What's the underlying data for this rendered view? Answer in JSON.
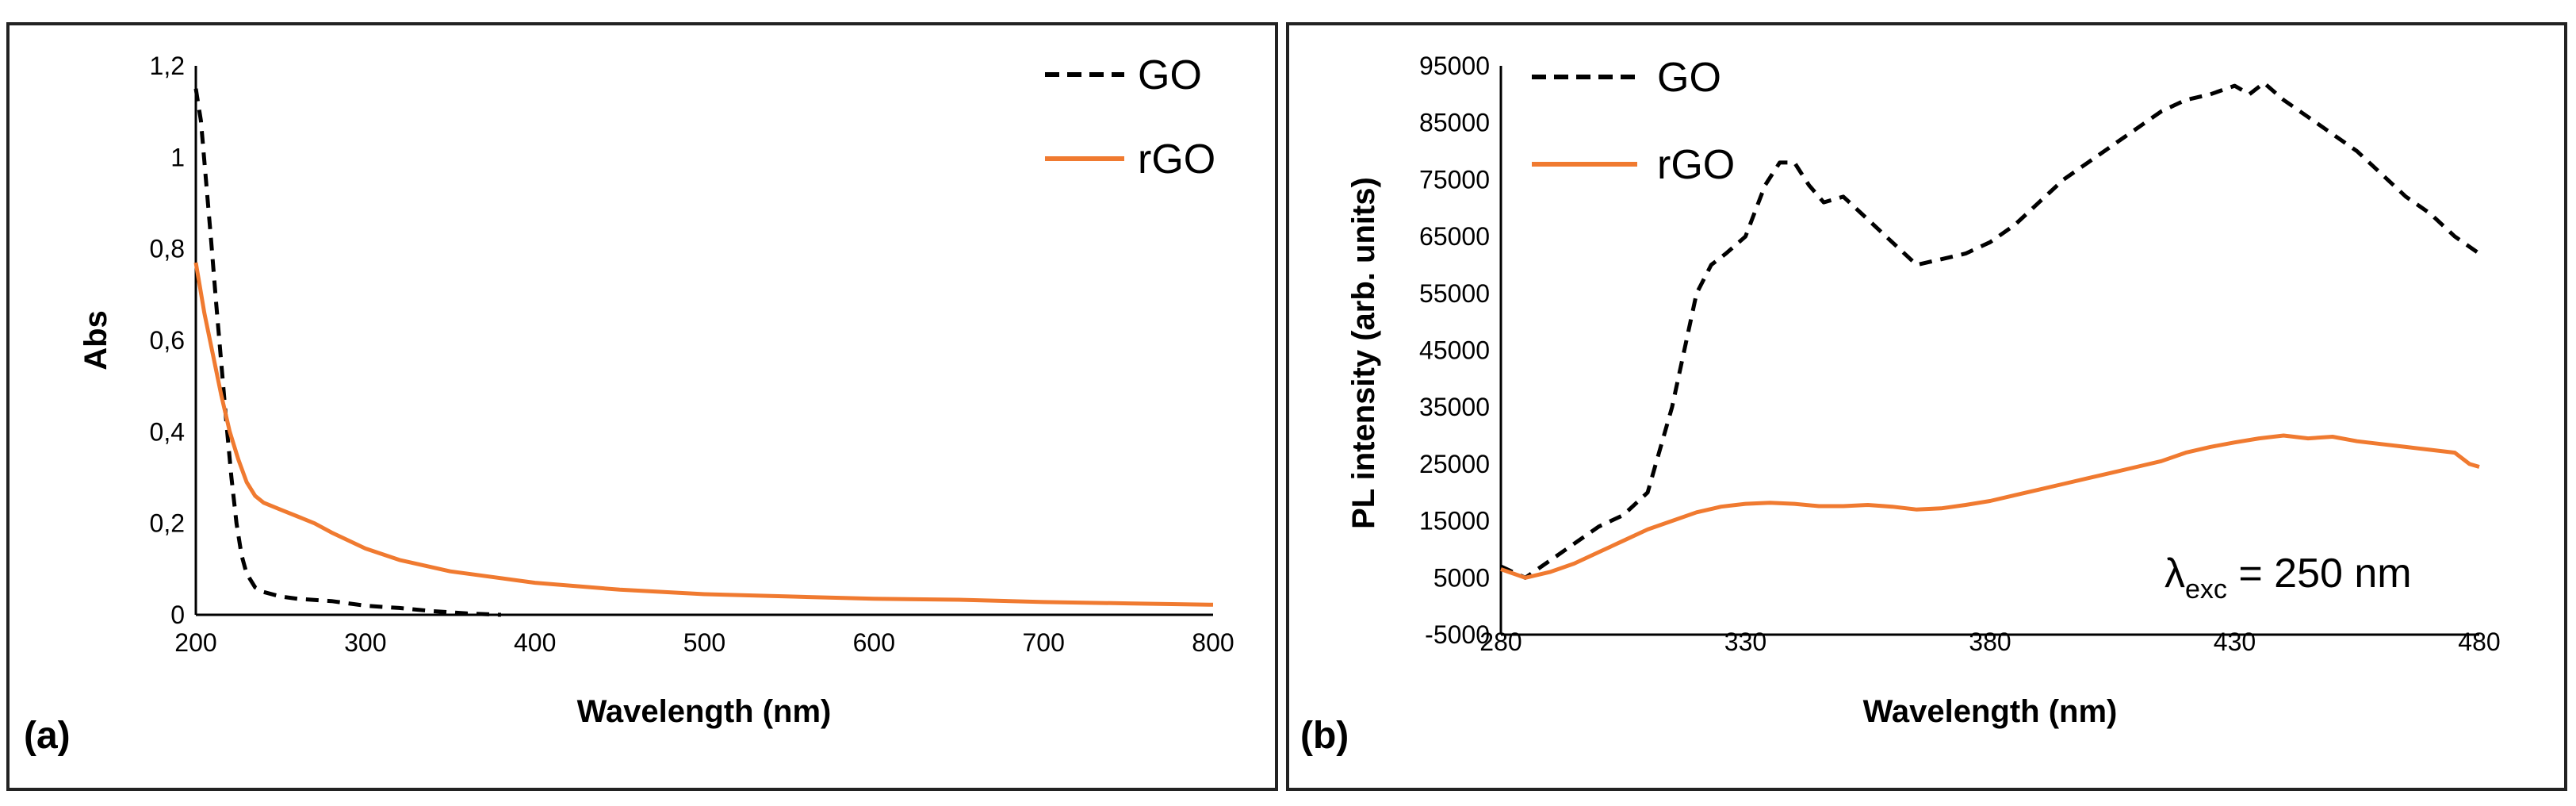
{
  "chart_data": [
    {
      "panel": "(a)",
      "type": "line",
      "xlabel": "Wavelength (nm)",
      "ylabel": "Abs",
      "xlim": [
        200,
        800
      ],
      "ylim": [
        0,
        1.2
      ],
      "xticks": [
        200,
        300,
        400,
        500,
        600,
        700,
        800
      ],
      "yticks": [
        0,
        0.2,
        0.4,
        0.6,
        0.8,
        1.0,
        1.2
      ],
      "ytick_labels": [
        "0",
        "0,2",
        "0,4",
        "0,6",
        "0,8",
        "1",
        "1,2"
      ],
      "legend_position": "top-right",
      "series": [
        {
          "name": "GO",
          "color": "#000000",
          "style": "dashed",
          "x": [
            200,
            203,
            206,
            209,
            212,
            215,
            218,
            221,
            224,
            227,
            230,
            235,
            240,
            250,
            260,
            280,
            300,
            320,
            340,
            360,
            380
          ],
          "y": [
            1.15,
            1.08,
            0.95,
            0.82,
            0.68,
            0.55,
            0.42,
            0.3,
            0.2,
            0.13,
            0.09,
            0.06,
            0.05,
            0.04,
            0.035,
            0.03,
            0.02,
            0.015,
            0.008,
            0.003,
            0.0
          ]
        },
        {
          "name": "rGO",
          "color": "#F07A30",
          "style": "solid",
          "x": [
            200,
            205,
            210,
            215,
            220,
            225,
            230,
            235,
            240,
            250,
            260,
            270,
            280,
            300,
            320,
            350,
            400,
            450,
            500,
            550,
            600,
            650,
            700,
            750,
            800
          ],
          "y": [
            0.77,
            0.66,
            0.57,
            0.48,
            0.4,
            0.34,
            0.29,
            0.26,
            0.245,
            0.23,
            0.215,
            0.2,
            0.18,
            0.145,
            0.12,
            0.095,
            0.07,
            0.055,
            0.045,
            0.04,
            0.035,
            0.033,
            0.028,
            0.025,
            0.022
          ]
        }
      ]
    },
    {
      "panel": "(b)",
      "type": "line",
      "xlabel": "Wavelength (nm)",
      "ylabel": "PL intensity (arb. units)",
      "xlim": [
        280,
        480
      ],
      "ylim": [
        -5000,
        95000
      ],
      "xticks": [
        280,
        330,
        380,
        430,
        480
      ],
      "yticks": [
        -5000,
        5000,
        15000,
        25000,
        35000,
        45000,
        55000,
        65000,
        75000,
        85000,
        95000
      ],
      "legend_position": "top-left",
      "annotation": "λexc = 250 nm",
      "series": [
        {
          "name": "GO",
          "color": "#000000",
          "style": "dashed",
          "x": [
            280,
            285,
            290,
            295,
            300,
            305,
            310,
            315,
            320,
            323,
            326,
            330,
            334,
            337,
            340,
            343,
            346,
            350,
            355,
            360,
            365,
            370,
            375,
            380,
            385,
            390,
            395,
            400,
            405,
            410,
            415,
            420,
            425,
            430,
            433,
            436,
            440,
            445,
            450,
            455,
            460,
            465,
            470,
            475,
            480
          ],
          "y": [
            7000,
            5000,
            8000,
            11000,
            14000,
            16000,
            20000,
            35000,
            55000,
            60000,
            62000,
            65000,
            74000,
            78000,
            78000,
            74000,
            71000,
            72000,
            68000,
            64000,
            60000,
            61000,
            62000,
            64000,
            67000,
            71000,
            75000,
            78000,
            81000,
            84000,
            87000,
            89000,
            90000,
            91500,
            90000,
            92000,
            89000,
            86000,
            83000,
            80000,
            76000,
            72000,
            69000,
            65000,
            62000
          ]
        },
        {
          "name": "rGO",
          "color": "#F07A30",
          "style": "solid",
          "x": [
            280,
            285,
            290,
            295,
            300,
            305,
            310,
            315,
            320,
            325,
            330,
            335,
            340,
            345,
            350,
            355,
            360,
            365,
            370,
            375,
            380,
            385,
            390,
            395,
            400,
            405,
            410,
            415,
            420,
            425,
            430,
            435,
            440,
            445,
            450,
            455,
            460,
            465,
            470,
            475,
            478,
            480
          ],
          "y": [
            6500,
            5000,
            6000,
            7500,
            9500,
            11500,
            13500,
            15000,
            16500,
            17500,
            18000,
            18200,
            18000,
            17600,
            17600,
            17800,
            17500,
            17000,
            17200,
            17800,
            18500,
            19500,
            20500,
            21500,
            22500,
            23500,
            24500,
            25500,
            27000,
            28000,
            28800,
            29500,
            30000,
            29500,
            29800,
            29000,
            28500,
            28000,
            27500,
            27000,
            25000,
            24500
          ]
        }
      ]
    }
  ]
}
